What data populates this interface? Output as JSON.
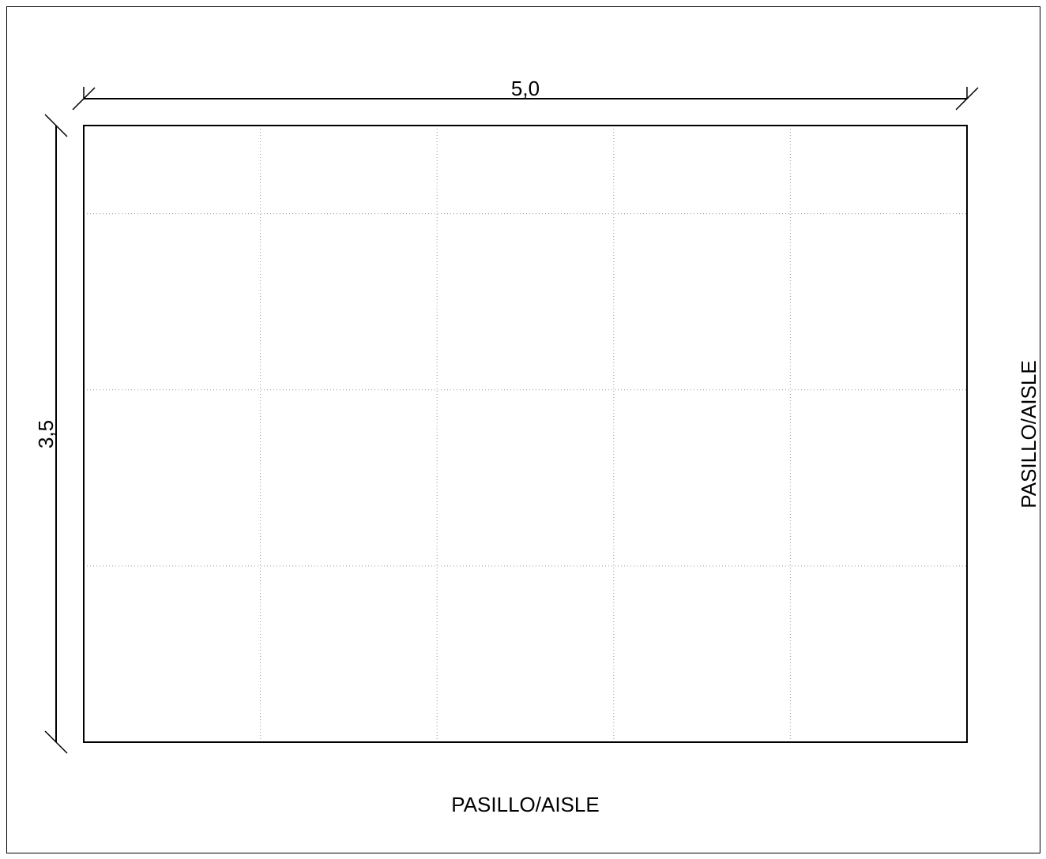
{
  "plan": {
    "width_dimension": "5,0",
    "depth_dimension": "3,5",
    "grid_columns": 5,
    "grid_rows": 3.5,
    "aisle_bottom_label": "PASILLO/AISLE",
    "aisle_right_label": "PASILLO/AISLE"
  },
  "colors": {
    "line": "#000000",
    "grid": "#9a9a9a",
    "background": "#ffffff"
  }
}
